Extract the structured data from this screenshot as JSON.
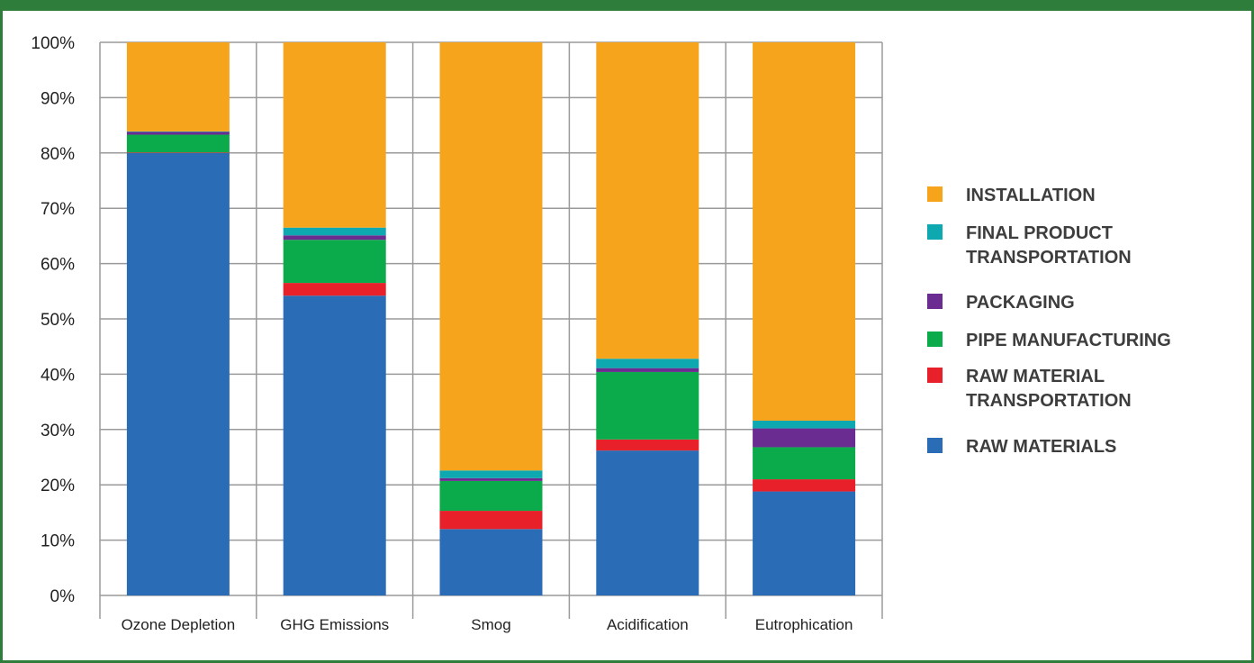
{
  "chart_data": {
    "type": "bar",
    "stacked": true,
    "categories": [
      "Ozone Depletion",
      "GHG Emissions",
      "Smog",
      "Acidification",
      "Eutrophication"
    ],
    "series": [
      {
        "name": "RAW MATERIALS",
        "color": "#2b6cb6",
        "values": [
          80,
          54.2,
          12,
          26.2,
          18.8
        ]
      },
      {
        "name": "RAW MATERIAL TRANSPORTATION",
        "color": "#e8202a",
        "values": [
          0.1,
          2.3,
          3.3,
          2,
          2.2
        ]
      },
      {
        "name": "PIPE MANUFACTURING",
        "color": "#0bab4b",
        "values": [
          3.2,
          7.8,
          5.4,
          12.2,
          5.8
        ]
      },
      {
        "name": "PACKAGING",
        "color": "#6b2c91",
        "values": [
          0.5,
          0.8,
          0.5,
          0.7,
          3.4
        ]
      },
      {
        "name": "FINAL PRODUCT TRANSPORTATION",
        "color": "#0ea8b0",
        "values": [
          0.1,
          1.4,
          1.4,
          1.7,
          1.4
        ]
      },
      {
        "name": "INSTALLATION",
        "color": "#f7a41d",
        "values": [
          16.1,
          33.5,
          77.4,
          57.2,
          68.4
        ]
      }
    ],
    "legend_labels": [
      {
        "lines": [
          "INSTALLATION"
        ]
      },
      {
        "lines": [
          "FINAL PRODUCT",
          "TRANSPORTATION"
        ]
      },
      {
        "lines": [
          "PACKAGING"
        ]
      },
      {
        "lines": [
          "PIPE MANUFACTURING"
        ]
      },
      {
        "lines": [
          "RAW MATERIAL",
          "TRANSPORTATION"
        ]
      },
      {
        "lines": [
          "RAW MATERIALS"
        ]
      }
    ],
    "yticks": [
      "0%",
      "10%",
      "20%",
      "30%",
      "40%",
      "50%",
      "60%",
      "70%",
      "80%",
      "90%",
      "100%"
    ],
    "ylim": [
      0,
      100
    ],
    "grid": true,
    "legend_position": "right",
    "title": "",
    "xlabel": "",
    "ylabel": ""
  },
  "colors": {
    "frame": "#2e7d3a",
    "grid": "#9a9a9a"
  }
}
